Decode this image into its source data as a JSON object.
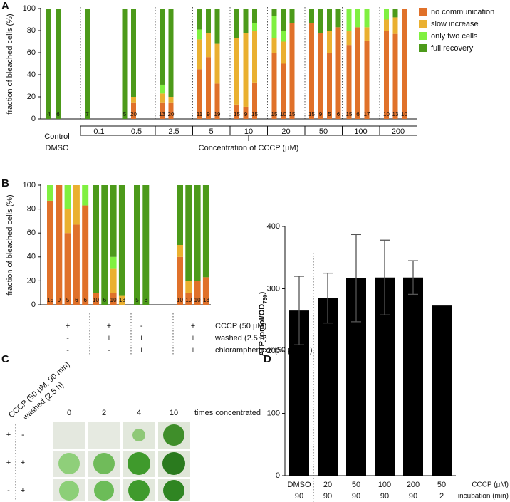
{
  "chart_data": [
    {
      "panel": "A",
      "type": "stacked_bar",
      "y_label": "fraction of bleached cells (%)",
      "ylim": [
        0,
        100
      ],
      "yticks": [
        0,
        20,
        40,
        60,
        80,
        100
      ],
      "series": [
        {
          "name": "no communication",
          "color": "#e0712a"
        },
        {
          "name": "slow increase",
          "color": "#eab030"
        },
        {
          "name": "only two cells",
          "color": "#80f040"
        },
        {
          "name": "full recovery",
          "color": "#4c9a1a"
        }
      ],
      "control_label": [
        "Control",
        "DMSO"
      ],
      "x_label": "Concentration of CCCP (µM)",
      "groups": [
        {
          "label": null,
          "bars": [
            {
              "n": 4,
              "values": [
                0,
                0,
                0,
                100
              ]
            },
            {
              "n": 6,
              "values": [
                0,
                0,
                0,
                100
              ]
            }
          ]
        },
        {
          "label": "0.1",
          "bars": [
            {
              "n": 7,
              "values": [
                0,
                0,
                0,
                100
              ]
            }
          ]
        },
        {
          "label": "0.5",
          "bars": [
            {
              "n": 5,
              "values": [
                0,
                0,
                0,
                100
              ]
            },
            {
              "n": 20,
              "values": [
                15,
                5,
                0,
                80
              ]
            }
          ]
        },
        {
          "label": "2.5",
          "bars": [
            {
              "n": 13,
              "values": [
                15,
                8,
                8,
                69
              ]
            },
            {
              "n": 20,
              "values": [
                15,
                5,
                0,
                80
              ]
            }
          ]
        },
        {
          "label": "5",
          "bars": [
            {
              "n": 11,
              "values": [
                45,
                27,
                9,
                19
              ]
            },
            {
              "n": 9,
              "values": [
                56,
                22,
                0,
                22
              ]
            },
            {
              "n": 19,
              "values": [
                32,
                36,
                0,
                32
              ]
            }
          ]
        },
        {
          "label": "10",
          "bars": [
            {
              "n": 15,
              "values": [
                13,
                60,
                0,
                27
              ]
            },
            {
              "n": 9,
              "values": [
                11,
                67,
                0,
                22
              ]
            },
            {
              "n": 15,
              "values": [
                33,
                47,
                7,
                13
              ]
            }
          ]
        },
        {
          "label": "20",
          "bars": [
            {
              "n": 15,
              "values": [
                60,
                13,
                20,
                7
              ]
            },
            {
              "n": 10,
              "values": [
                50,
                20,
                10,
                20
              ]
            },
            {
              "n": 15,
              "values": [
                87,
                0,
                0,
                13
              ]
            }
          ]
        },
        {
          "label": "50",
          "bars": [
            {
              "n": 15,
              "values": [
                87,
                0,
                0,
                13
              ]
            },
            {
              "n": 9,
              "values": [
                78,
                0,
                0,
                22
              ]
            },
            {
              "n": 5,
              "values": [
                60,
                20,
                0,
                20
              ]
            },
            {
              "n": 6,
              "values": [
                83,
                0,
                0,
                17
              ]
            }
          ]
        },
        {
          "label": "100",
          "bars": [
            {
              "n": 15,
              "values": [
                67,
                13,
                20,
                0
              ]
            },
            {
              "n": 6,
              "values": [
                83,
                0,
                17,
                0
              ]
            },
            {
              "n": 17,
              "values": [
                71,
                12,
                17,
                0
              ]
            }
          ]
        },
        {
          "label": "200",
          "bars": [
            {
              "n": 10,
              "values": [
                80,
                10,
                10,
                0
              ]
            },
            {
              "n": 13,
              "values": [
                77,
                15,
                0,
                8
              ]
            },
            {
              "n": 10,
              "values": [
                100,
                0,
                0,
                0
              ]
            }
          ]
        }
      ]
    },
    {
      "panel": "B",
      "type": "stacked_bar",
      "y_label": "fraction of bleached cells (%)",
      "ylim": [
        0,
        100
      ],
      "yticks": [
        0,
        20,
        40,
        60,
        80,
        100
      ],
      "condition_labels": [
        "CCCP (50 µM)",
        "washed (2.5 h)",
        "chloramphenicol (50 µg/mL)"
      ],
      "groups": [
        {
          "conditions": [
            "+",
            "-",
            "-"
          ],
          "bars": [
            {
              "n": 15,
              "values": [
                87,
                0,
                13,
                0
              ]
            },
            {
              "n": 9,
              "values": [
                100,
                0,
                0,
                0
              ]
            },
            {
              "n": 5,
              "values": [
                60,
                20,
                20,
                0
              ]
            },
            {
              "n": 6,
              "values": [
                67,
                33,
                0,
                0
              ]
            },
            {
              "n": 6,
              "values": [
                83,
                0,
                17,
                0
              ]
            }
          ]
        },
        {
          "conditions": [
            "+",
            "+",
            "-"
          ],
          "bars": [
            {
              "n": 10,
              "values": [
                10,
                0,
                0,
                90
              ]
            },
            {
              "n": 6,
              "values": [
                0,
                0,
                0,
                100
              ]
            },
            {
              "n": 10,
              "values": [
                10,
                20,
                10,
                60
              ]
            },
            {
              "n": 13,
              "values": [
                0,
                8,
                0,
                92
              ]
            }
          ]
        },
        {
          "conditions": [
            "-",
            "+",
            "+"
          ],
          "bars": [
            {
              "n": 5,
              "values": [
                0,
                0,
                0,
                100
              ]
            },
            {
              "n": 8,
              "values": [
                0,
                0,
                0,
                100
              ]
            }
          ]
        },
        {
          "conditions": [
            "+",
            "+",
            "+"
          ],
          "bars": [
            {
              "n": 10,
              "values": [
                40,
                10,
                0,
                50
              ]
            },
            {
              "n": 10,
              "values": [
                10,
                10,
                0,
                80
              ]
            },
            {
              "n": 10,
              "values": [
                20,
                0,
                0,
                80
              ]
            },
            {
              "n": 13,
              "values": [
                23,
                0,
                0,
                77
              ]
            }
          ]
        }
      ]
    },
    {
      "panel": "C",
      "type": "image_grid",
      "row_header_labels": [
        "CCCP (50 µM, 90 min)",
        "washed (2.5 h)"
      ],
      "columns": [
        0,
        2,
        4,
        10
      ],
      "column_title": "times concentrated",
      "rows": [
        [
          "+",
          "-"
        ],
        [
          "+",
          "+"
        ],
        [
          "-",
          "+"
        ]
      ]
    },
    {
      "panel": "D",
      "type": "bar",
      "y_label": [
        "ATP (pmol/OD",
        "750",
        ")"
      ],
      "ylim": [
        0,
        400
      ],
      "yticks": [
        0,
        100,
        200,
        300,
        400
      ],
      "categories": [
        "DMSO",
        20,
        50,
        100,
        200,
        50
      ],
      "categories2": [
        90,
        90,
        90,
        90,
        90,
        2
      ],
      "row_labels": [
        "CCCP (µM)",
        "incubation (min)"
      ],
      "values": [
        265,
        285,
        317,
        318,
        318,
        273
      ],
      "errors": [
        55,
        40,
        70,
        60,
        27,
        null
      ],
      "color": "#000000"
    }
  ]
}
